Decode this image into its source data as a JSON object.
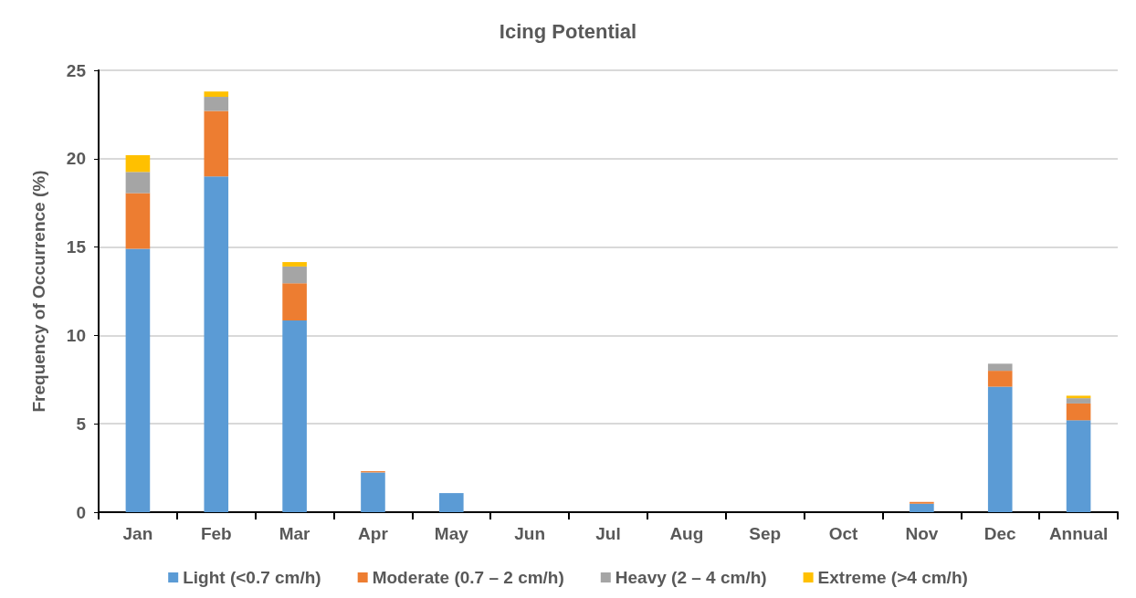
{
  "chart_data": {
    "type": "bar",
    "title": "Icing Potential",
    "ylabel": "Frequency of Occurrence (%)",
    "categories": [
      "Jan",
      "Feb",
      "Mar",
      "Apr",
      "May",
      "Jun",
      "Jul",
      "Aug",
      "Sep",
      "Oct",
      "Nov",
      "Dec",
      "Annual"
    ],
    "stacked": true,
    "series": [
      {
        "name": "Light (<0.7 cm/h)",
        "color": "#5b9bd5",
        "values": [
          14.9,
          19.0,
          10.85,
          2.25,
          1.08,
          0,
          0,
          0,
          0,
          0,
          0.48,
          7.1,
          5.2
        ]
      },
      {
        "name": "Moderate (0.7 – 2 cm/h)",
        "color": "#ed7d31",
        "values": [
          3.15,
          3.7,
          2.1,
          0.07,
          0,
          0,
          0,
          0,
          0,
          0,
          0.1,
          0.9,
          0.95
        ]
      },
      {
        "name": "Heavy (2 – 4 cm/h)",
        "color": "#a5a5a5",
        "values": [
          1.2,
          0.8,
          0.95,
          0,
          0,
          0,
          0,
          0,
          0,
          0,
          0,
          0.4,
          0.3
        ]
      },
      {
        "name": "Extreme (>4 cm/h)",
        "color": "#ffc000",
        "values": [
          0.95,
          0.3,
          0.25,
          0,
          0,
          0,
          0,
          0,
          0,
          0,
          0,
          0,
          0.14
        ]
      }
    ],
    "ylim": [
      0,
      25
    ],
    "yticks": [
      0,
      5,
      10,
      15,
      20,
      25
    ],
    "grid": "y",
    "legend": "bottom"
  }
}
